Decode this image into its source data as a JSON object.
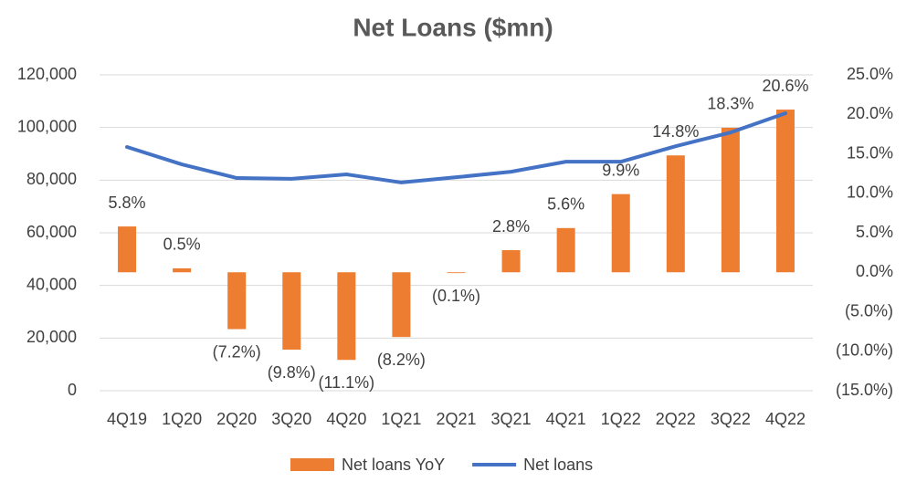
{
  "chart_data": {
    "type": "combo",
    "title": "Net Loans ($mn)",
    "categories": [
      "4Q19",
      "1Q20",
      "2Q20",
      "3Q20",
      "4Q20",
      "1Q21",
      "2Q21",
      "3Q21",
      "4Q21",
      "1Q22",
      "2Q22",
      "3Q22",
      "4Q22"
    ],
    "series": [
      {
        "name": "Net loans YoY",
        "type": "bar",
        "axis": "y2",
        "color": "#ed7d31",
        "values": [
          5.8,
          0.5,
          -7.2,
          -9.8,
          -11.1,
          -8.2,
          -0.1,
          2.8,
          5.6,
          9.9,
          14.8,
          18.3,
          20.6
        ],
        "value_labels": [
          "5.8%",
          "0.5%",
          "(7.2%)",
          "(9.8%)",
          "(11.1%)",
          "(8.2%)",
          "(0.1%)",
          "2.8%",
          "5.6%",
          "9.9%",
          "14.8%",
          "18.3%",
          "20.6%"
        ]
      },
      {
        "name": "Net loans",
        "type": "line",
        "color": "#4472c4",
        "values": [
          92600,
          86000,
          80800,
          80500,
          82200,
          79100,
          81100,
          83200,
          87000,
          87000,
          92900,
          98100,
          105400
        ]
      }
    ],
    "ylim": [
      0,
      120000
    ],
    "yticks": [
      0,
      {
        "value": 20000,
        "label": "20,000"
      },
      {
        "value": 40000,
        "label": "40,000"
      },
      {
        "value": 60000,
        "label": "60,000"
      },
      {
        "value": 80000,
        "label": "80,000"
      },
      {
        "value": 100000,
        "label": "100,000"
      },
      {
        "value": 120000,
        "label": "120,000"
      }
    ],
    "y2lim": [
      -15,
      25
    ],
    "y2ticks": [
      {
        "value": -15,
        "label": "(15.0%)"
      },
      {
        "value": -10,
        "label": "(10.0%)"
      },
      {
        "value": -5,
        "label": "(5.0%)"
      },
      {
        "value": 0,
        "label": "0.0%"
      },
      {
        "value": 5,
        "label": "5.0%"
      },
      {
        "value": 10,
        "label": "10.0%"
      },
      {
        "value": 15,
        "label": "15.0%"
      },
      {
        "value": 20,
        "label": "20.0%"
      },
      {
        "value": 25,
        "label": "25.0%"
      }
    ],
    "grid": true,
    "legend": "bottom"
  }
}
